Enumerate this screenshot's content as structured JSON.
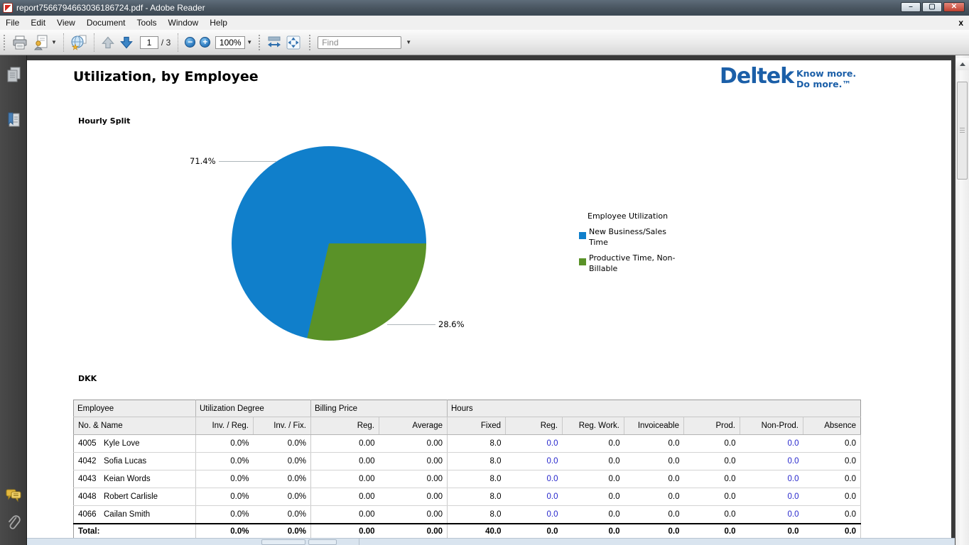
{
  "window": {
    "title": "report7566794663036186724.pdf - Adobe Reader",
    "controls": {
      "minimize": "–",
      "maximize": "▢",
      "close": "✕"
    }
  },
  "menu": {
    "items": [
      "File",
      "Edit",
      "View",
      "Document",
      "Tools",
      "Window",
      "Help"
    ],
    "close_document": "x"
  },
  "toolbar": {
    "page_current": "1",
    "page_total": "/ 3",
    "zoom_out": "−",
    "zoom_in": "+",
    "zoom_value": "100%",
    "find_placeholder": "Find"
  },
  "document": {
    "title": "Utilization, by Employee",
    "logo": {
      "brand": "Deltek",
      "tagline_line1": "Know more.",
      "tagline_line2": "Do more.™"
    },
    "chart_section_label": "Hourly Split",
    "currency_label": "DKK"
  },
  "chart_data": {
    "type": "pie",
    "title": "Hourly Split",
    "legend_title": "Employee Utilization",
    "legend_position": "right",
    "slices": [
      {
        "label": "New Business/Sales Time",
        "value_pct": 71.4,
        "color": "#107fcb"
      },
      {
        "label": "Productive Time, Non-Billable",
        "value_pct": 28.6,
        "color": "#5a9228"
      }
    ],
    "labels": [
      "71.4%",
      "28.6%"
    ]
  },
  "table": {
    "groups": [
      "Employee",
      "Utilization Degree",
      "Billing Price",
      "Hours"
    ],
    "group_spans": [
      1,
      2,
      2,
      7
    ],
    "columns": [
      "No. & Name",
      "Inv. / Reg.",
      "Inv. / Fix.",
      "Reg.",
      "Average",
      "Fixed",
      "Reg.",
      "Reg. Work.",
      "Invoiceable",
      "Prod.",
      "Non-Prod.",
      "Absence"
    ],
    "link_value_indices": [
      5,
      9
    ],
    "link_color": "#2626cc",
    "rows": [
      {
        "no": "4005",
        "name": "Kyle Love",
        "values": [
          "0.0%",
          "0.0%",
          "0.00",
          "0.00",
          "8.0",
          "0.0",
          "0.0",
          "0.0",
          "0.0",
          "0.0",
          "0.0"
        ]
      },
      {
        "no": "4042",
        "name": "Sofia Lucas",
        "values": [
          "0.0%",
          "0.0%",
          "0.00",
          "0.00",
          "8.0",
          "0.0",
          "0.0",
          "0.0",
          "0.0",
          "0.0",
          "0.0"
        ]
      },
      {
        "no": "4043",
        "name": "Keian Words",
        "values": [
          "0.0%",
          "0.0%",
          "0.00",
          "0.00",
          "8.0",
          "0.0",
          "0.0",
          "0.0",
          "0.0",
          "0.0",
          "0.0"
        ]
      },
      {
        "no": "4048",
        "name": "Robert Carlisle",
        "values": [
          "0.0%",
          "0.0%",
          "0.00",
          "0.00",
          "8.0",
          "0.0",
          "0.0",
          "0.0",
          "0.0",
          "0.0",
          "0.0"
        ]
      },
      {
        "no": "4066",
        "name": "Cailan Smith",
        "values": [
          "0.0%",
          "0.0%",
          "0.00",
          "0.00",
          "8.0",
          "0.0",
          "0.0",
          "0.0",
          "0.0",
          "0.0",
          "0.0"
        ]
      }
    ],
    "total": {
      "label": "Total:",
      "values": [
        "0.0%",
        "0.0%",
        "0.00",
        "0.00",
        "40.0",
        "0.0",
        "0.0",
        "0.0",
        "0.0",
        "0.0",
        "0.0"
      ]
    }
  }
}
